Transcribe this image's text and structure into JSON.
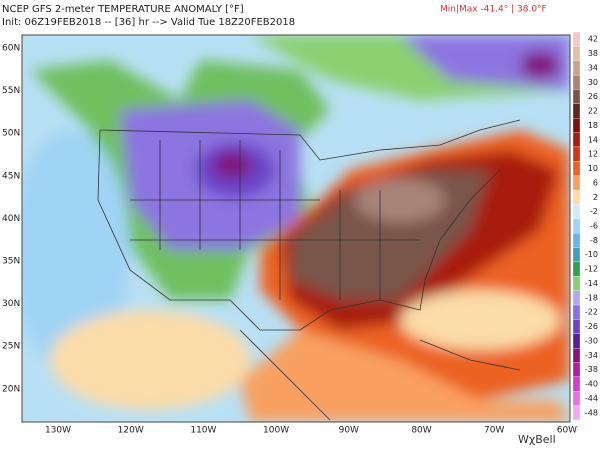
{
  "header": {
    "title": "NCEP GFS 2-meter TEMPERATURE ANOMALY [°F]",
    "subtitle": "Init: 06Z19FEB2018 -- [36] hr --> Valid Tue 18Z20FEB2018",
    "minmax": "Min|Max -41.4° | 38.0°F"
  },
  "map": {
    "lat_labels": [
      "60N",
      "55N",
      "50N",
      "45N",
      "40N",
      "35N",
      "30N",
      "25N",
      "20N"
    ],
    "lon_labels": [
      "130W",
      "120W",
      "110W",
      "100W",
      "90W",
      "80W",
      "70W",
      "60W"
    ]
  },
  "colorbar": [
    {
      "label": "42",
      "color": "#f2c8cc"
    },
    {
      "label": "38",
      "color": "#dcc0b0"
    },
    {
      "label": "34",
      "color": "#c4a494"
    },
    {
      "label": "30",
      "color": "#a88478"
    },
    {
      "label": "26",
      "color": "#7a5448"
    },
    {
      "label": "22",
      "color": "#5a2a22"
    },
    {
      "label": "18",
      "color": "#7a1010"
    },
    {
      "label": "14",
      "color": "#a81c10"
    },
    {
      "label": "12",
      "color": "#d03818"
    },
    {
      "label": "10",
      "color": "#ec6224"
    },
    {
      "label": "6",
      "color": "#f8a060"
    },
    {
      "label": "2",
      "color": "#fcdca8"
    },
    {
      "label": "-2",
      "color": "#cfeaf8"
    },
    {
      "label": "-6",
      "color": "#a0d4f4"
    },
    {
      "label": "-8",
      "color": "#6ab4ec"
    },
    {
      "label": "-10",
      "color": "#40a0b8"
    },
    {
      "label": "-12",
      "color": "#30a050"
    },
    {
      "label": "-14",
      "color": "#84d070"
    },
    {
      "label": "-18",
      "color": "#b4a8ec"
    },
    {
      "label": "-22",
      "color": "#8870e0"
    },
    {
      "label": "-26",
      "color": "#6a44c8"
    },
    {
      "label": "-30",
      "color": "#54209c"
    },
    {
      "label": "-34",
      "color": "#801480"
    },
    {
      "label": "-38",
      "color": "#b01ca8"
    },
    {
      "label": "-40",
      "color": "#d040c8"
    },
    {
      "label": "-44",
      "color": "#e870e0"
    },
    {
      "label": "-48",
      "color": "#f4a8f0"
    }
  ],
  "logo": "WχBell"
}
